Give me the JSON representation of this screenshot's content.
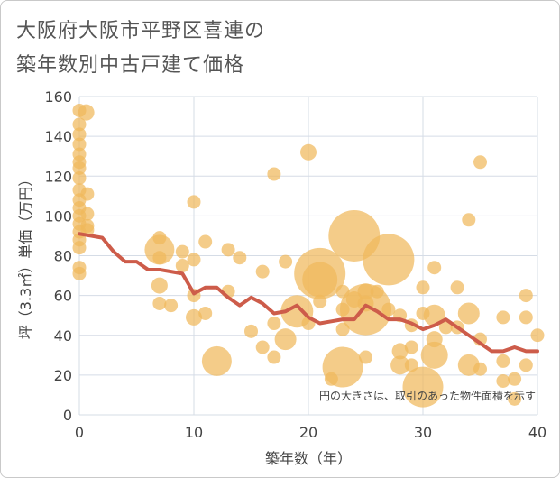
{
  "chart_data": {
    "type": "scatter",
    "title_lines": [
      "大阪府大阪市平野区喜連の",
      "築年数別中古戸建て価格"
    ],
    "xlabel": "築年数（年）",
    "ylabel": "坪（3.3㎡）単価（万円）",
    "xlim": [
      0,
      40
    ],
    "ylim": [
      0,
      160
    ],
    "x_ticks": [
      0,
      10,
      20,
      30,
      40
    ],
    "y_ticks": [
      0,
      20,
      40,
      60,
      80,
      100,
      120,
      140,
      160
    ],
    "grid": true,
    "note": "円の大きさは、取引のあった物件面積を示す",
    "colors": {
      "bubble": "#f0b85c",
      "trend": "#cd5c4a",
      "grid": "#d5dce6",
      "axis_text": "#444444"
    },
    "scatter_points": [
      {
        "x": 0,
        "y": 153,
        "s": 1
      },
      {
        "x": 0,
        "y": 146,
        "s": 1
      },
      {
        "x": 0,
        "y": 141,
        "s": 1
      },
      {
        "x": 0,
        "y": 136,
        "s": 1
      },
      {
        "x": 0,
        "y": 131,
        "s": 1
      },
      {
        "x": 0,
        "y": 127,
        "s": 1
      },
      {
        "x": 0,
        "y": 124,
        "s": 1
      },
      {
        "x": 0,
        "y": 119,
        "s": 1
      },
      {
        "x": 0,
        "y": 113,
        "s": 1
      },
      {
        "x": 0,
        "y": 108,
        "s": 1
      },
      {
        "x": 0,
        "y": 104,
        "s": 1
      },
      {
        "x": 0,
        "y": 100,
        "s": 1
      },
      {
        "x": 0,
        "y": 96,
        "s": 1
      },
      {
        "x": 0,
        "y": 92,
        "s": 1
      },
      {
        "x": 0,
        "y": 88,
        "s": 1
      },
      {
        "x": 0,
        "y": 84,
        "s": 1
      },
      {
        "x": 0,
        "y": 74,
        "s": 1
      },
      {
        "x": 0,
        "y": 71,
        "s": 1
      },
      {
        "x": 0.6,
        "y": 152,
        "s": 1.2
      },
      {
        "x": 0.7,
        "y": 111,
        "s": 1
      },
      {
        "x": 0.7,
        "y": 101,
        "s": 1
      },
      {
        "x": 0.7,
        "y": 95,
        "s": 1
      },
      {
        "x": 0.7,
        "y": 93,
        "s": 1
      },
      {
        "x": 7,
        "y": 89,
        "s": 1
      },
      {
        "x": 7,
        "y": 83,
        "s": 2.2
      },
      {
        "x": 7,
        "y": 79,
        "s": 1
      },
      {
        "x": 7,
        "y": 65,
        "s": 1.2
      },
      {
        "x": 7,
        "y": 56,
        "s": 1
      },
      {
        "x": 8,
        "y": 55,
        "s": 1
      },
      {
        "x": 9,
        "y": 82,
        "s": 1
      },
      {
        "x": 9,
        "y": 75,
        "s": 1
      },
      {
        "x": 10,
        "y": 107,
        "s": 1
      },
      {
        "x": 10,
        "y": 78,
        "s": 1
      },
      {
        "x": 10,
        "y": 60,
        "s": 1
      },
      {
        "x": 10,
        "y": 49,
        "s": 1.2
      },
      {
        "x": 11,
        "y": 87,
        "s": 1
      },
      {
        "x": 11,
        "y": 51,
        "s": 1
      },
      {
        "x": 12,
        "y": 27,
        "s": 2.2
      },
      {
        "x": 13,
        "y": 83,
        "s": 1
      },
      {
        "x": 13,
        "y": 62,
        "s": 1
      },
      {
        "x": 14,
        "y": 79,
        "s": 1
      },
      {
        "x": 15,
        "y": 42,
        "s": 1
      },
      {
        "x": 16,
        "y": 72,
        "s": 1
      },
      {
        "x": 16,
        "y": 34,
        "s": 1
      },
      {
        "x": 17,
        "y": 121,
        "s": 1
      },
      {
        "x": 17,
        "y": 46,
        "s": 1
      },
      {
        "x": 17,
        "y": 29,
        "s": 1
      },
      {
        "x": 18,
        "y": 77,
        "s": 1
      },
      {
        "x": 18,
        "y": 38,
        "s": 1.6
      },
      {
        "x": 19,
        "y": 52,
        "s": 2.4
      },
      {
        "x": 20,
        "y": 132,
        "s": 1.2
      },
      {
        "x": 20,
        "y": 46,
        "s": 1
      },
      {
        "x": 21,
        "y": 71,
        "s": 3.8
      },
      {
        "x": 21,
        "y": 68,
        "s": 2.6
      },
      {
        "x": 21,
        "y": 57,
        "s": 1
      },
      {
        "x": 22,
        "y": 18,
        "s": 1
      },
      {
        "x": 23,
        "y": 62,
        "s": 1
      },
      {
        "x": 23,
        "y": 53,
        "s": 1
      },
      {
        "x": 23,
        "y": 43,
        "s": 1
      },
      {
        "x": 23,
        "y": 24,
        "s": 3.0
      },
      {
        "x": 24,
        "y": 90,
        "s": 3.8
      },
      {
        "x": 24,
        "y": 58,
        "s": 1.2
      },
      {
        "x": 25,
        "y": 62,
        "s": 1.2
      },
      {
        "x": 25,
        "y": 56,
        "s": 1.2
      },
      {
        "x": 25,
        "y": 53,
        "s": 3.8
      },
      {
        "x": 25,
        "y": 29,
        "s": 1
      },
      {
        "x": 26,
        "y": 62,
        "s": 1
      },
      {
        "x": 27,
        "y": 78,
        "s": 3.8
      },
      {
        "x": 27,
        "y": 53,
        "s": 1
      },
      {
        "x": 28,
        "y": 50,
        "s": 1
      },
      {
        "x": 28,
        "y": 32,
        "s": 1.2
      },
      {
        "x": 28,
        "y": 25,
        "s": 1.4
      },
      {
        "x": 29,
        "y": 45,
        "s": 1
      },
      {
        "x": 29,
        "y": 34,
        "s": 1
      },
      {
        "x": 29,
        "y": 25,
        "s": 1
      },
      {
        "x": 30,
        "y": 64,
        "s": 1
      },
      {
        "x": 30,
        "y": 51,
        "s": 1
      },
      {
        "x": 30,
        "y": 14,
        "s": 3.0
      },
      {
        "x": 31,
        "y": 74,
        "s": 1
      },
      {
        "x": 31,
        "y": 50,
        "s": 1.6
      },
      {
        "x": 31,
        "y": 38,
        "s": 1.2
      },
      {
        "x": 31,
        "y": 30,
        "s": 2.0
      },
      {
        "x": 32,
        "y": 44,
        "s": 1
      },
      {
        "x": 33,
        "y": 64,
        "s": 1
      },
      {
        "x": 33,
        "y": 44,
        "s": 1
      },
      {
        "x": 34,
        "y": 98,
        "s": 1
      },
      {
        "x": 34,
        "y": 51,
        "s": 1.6
      },
      {
        "x": 34,
        "y": 25,
        "s": 1.6
      },
      {
        "x": 35,
        "y": 127,
        "s": 1
      },
      {
        "x": 35,
        "y": 38,
        "s": 1
      },
      {
        "x": 35,
        "y": 23,
        "s": 1
      },
      {
        "x": 37,
        "y": 49,
        "s": 1
      },
      {
        "x": 37,
        "y": 27,
        "s": 1
      },
      {
        "x": 37,
        "y": 17,
        "s": 1
      },
      {
        "x": 38,
        "y": 18,
        "s": 1
      },
      {
        "x": 38,
        "y": 8,
        "s": 1
      },
      {
        "x": 39,
        "y": 60,
        "s": 1
      },
      {
        "x": 39,
        "y": 49,
        "s": 1
      },
      {
        "x": 39,
        "y": 25,
        "s": 1
      },
      {
        "x": 40,
        "y": 40,
        "s": 1
      }
    ],
    "trend": {
      "x": [
        0,
        1,
        2,
        3,
        4,
        5,
        6,
        7,
        8,
        9,
        10,
        11,
        12,
        13,
        14,
        15,
        16,
        17,
        18,
        19,
        20,
        21,
        22,
        23,
        24,
        25,
        26,
        27,
        28,
        29,
        30,
        31,
        32,
        33,
        34,
        35,
        36,
        37,
        38,
        39,
        40
      ],
      "y": [
        91,
        90,
        89,
        82,
        77,
        77,
        73,
        73,
        72,
        71,
        61,
        64,
        64,
        59,
        55,
        59,
        56,
        51,
        52,
        55,
        49,
        46,
        47,
        48,
        48,
        55,
        52,
        48,
        48,
        46,
        43,
        45,
        48,
        44,
        40,
        36,
        32,
        32,
        34,
        32,
        32
      ]
    }
  }
}
